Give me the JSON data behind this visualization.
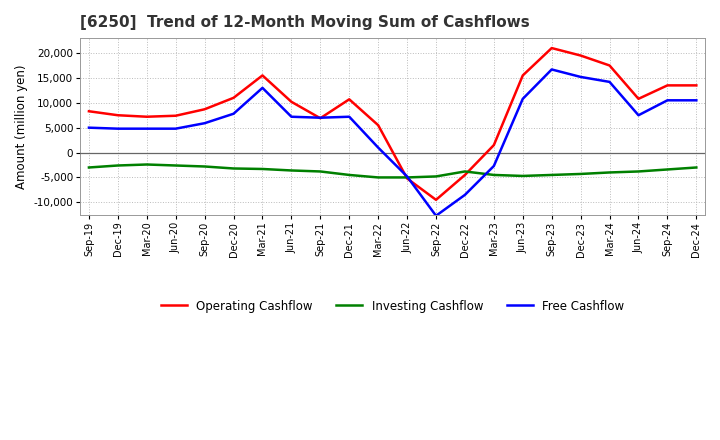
{
  "title": "[6250]  Trend of 12-Month Moving Sum of Cashflows",
  "ylabel": "Amount (million yen)",
  "background_color": "#ffffff",
  "grid_color": "#bbbbbb",
  "xlabels": [
    "Sep-19",
    "Dec-19",
    "Mar-20",
    "Jun-20",
    "Sep-20",
    "Dec-20",
    "Mar-21",
    "Jun-21",
    "Sep-21",
    "Dec-21",
    "Mar-22",
    "Jun-22",
    "Sep-22",
    "Dec-22",
    "Mar-23",
    "Jun-23",
    "Sep-23",
    "Dec-23",
    "Mar-24",
    "Jun-24",
    "Sep-24",
    "Dec-24"
  ],
  "operating": [
    8300,
    7500,
    7200,
    7400,
    8700,
    11000,
    15500,
    10200,
    6900,
    10700,
    5500,
    -5200,
    -9500,
    -4500,
    1500,
    15500,
    21000,
    19500,
    17500,
    10800,
    13500,
    13500
  ],
  "investing": [
    -3000,
    -2600,
    -2400,
    -2600,
    -2800,
    -3200,
    -3300,
    -3600,
    -3800,
    -4500,
    -5000,
    -5000,
    -4800,
    -3800,
    -4500,
    -4700,
    -4500,
    -4300,
    -4000,
    -3800,
    -3400,
    -3000
  ],
  "free": [
    5000,
    4800,
    4800,
    4800,
    5900,
    7800,
    13000,
    7200,
    7000,
    7200,
    1000,
    -4800,
    -12700,
    -8500,
    -2700,
    10800,
    16700,
    15200,
    14200,
    7500,
    10500,
    10500
  ],
  "operating_color": "#ff0000",
  "investing_color": "#008000",
  "free_color": "#0000ff",
  "ylim": [
    -12500,
    23000
  ],
  "yticks": [
    -10000,
    -5000,
    0,
    5000,
    10000,
    15000,
    20000
  ],
  "title_color": "#333333",
  "zero_line_color": "#666666",
  "spine_color": "#999999"
}
